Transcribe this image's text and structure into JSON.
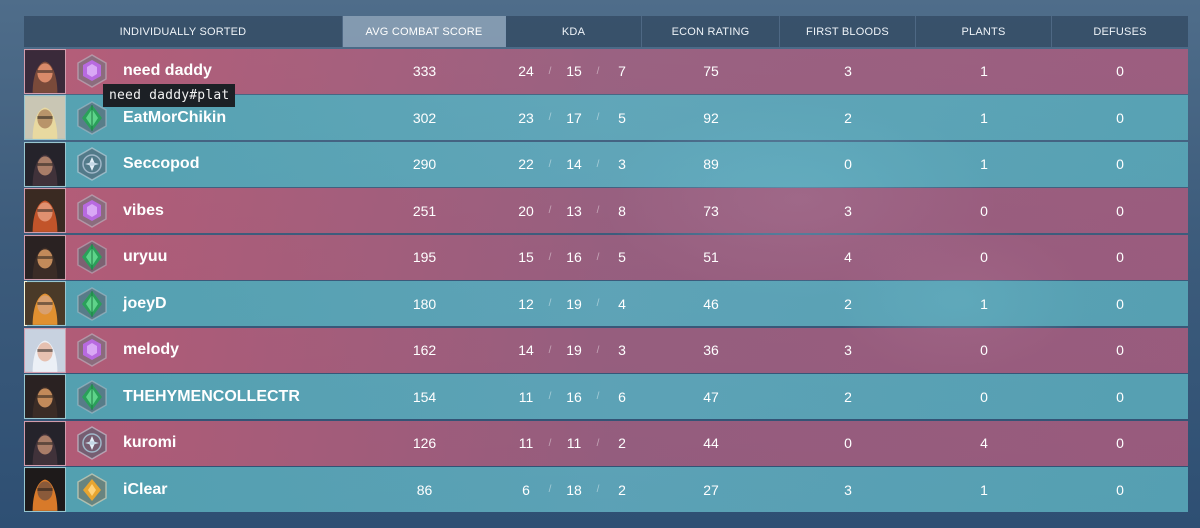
{
  "header": {
    "col_player": "INDIVIDUALLY SORTED",
    "col_acs": "AVG COMBAT SCORE",
    "col_kda": "KDA",
    "col_econ": "ECON RATING",
    "col_fb": "FIRST BLOODS",
    "col_plants": "PLANTS",
    "col_defuses": "DEFUSES",
    "sorted_column": "AVG COMBAT SCORE"
  },
  "tooltip": "need daddy#plat",
  "colors": {
    "red_team": "#c45c76",
    "teal_team": "#56a8b6",
    "platinum": "#b86ae0",
    "diamond": "#2aa05a",
    "silver": "#9fb7c8",
    "gold": "#e8a530"
  },
  "players": [
    {
      "name": "need daddy",
      "acs": "333",
      "k": "24",
      "d": "15",
      "a": "7",
      "econ": "75",
      "fb": "3",
      "plants": "1",
      "defuses": "0",
      "team": "red",
      "rank_icon": "platinum-rank-icon",
      "agent_icon": "agent-portrait-icon"
    },
    {
      "name": "EatMorChikin",
      "acs": "302",
      "k": "23",
      "d": "17",
      "a": "5",
      "econ": "92",
      "fb": "2",
      "plants": "1",
      "defuses": "0",
      "team": "teal",
      "rank_icon": "diamond-rank-icon",
      "agent_icon": "agent-portrait-icon"
    },
    {
      "name": "Seccopod",
      "acs": "290",
      "k": "22",
      "d": "14",
      "a": "3",
      "econ": "89",
      "fb": "0",
      "plants": "1",
      "defuses": "0",
      "team": "teal",
      "rank_icon": "silver-rank-icon",
      "agent_icon": "agent-portrait-icon"
    },
    {
      "name": "vibes",
      "acs": "251",
      "k": "20",
      "d": "13",
      "a": "8",
      "econ": "73",
      "fb": "3",
      "plants": "0",
      "defuses": "0",
      "team": "red",
      "rank_icon": "platinum-rank-icon",
      "agent_icon": "agent-portrait-icon"
    },
    {
      "name": "uryuu",
      "acs": "195",
      "k": "15",
      "d": "16",
      "a": "5",
      "econ": "51",
      "fb": "4",
      "plants": "0",
      "defuses": "0",
      "team": "red",
      "rank_icon": "diamond-rank-icon",
      "agent_icon": "agent-portrait-icon"
    },
    {
      "name": "joeyD",
      "acs": "180",
      "k": "12",
      "d": "19",
      "a": "4",
      "econ": "46",
      "fb": "2",
      "plants": "1",
      "defuses": "0",
      "team": "teal",
      "rank_icon": "diamond-rank-icon",
      "agent_icon": "agent-portrait-icon"
    },
    {
      "name": "melody",
      "acs": "162",
      "k": "14",
      "d": "19",
      "a": "3",
      "econ": "36",
      "fb": "3",
      "plants": "0",
      "defuses": "0",
      "team": "red",
      "rank_icon": "platinum-rank-icon",
      "agent_icon": "agent-portrait-icon"
    },
    {
      "name": "THEHYMENCOLLECTR",
      "acs": "154",
      "k": "11",
      "d": "16",
      "a": "6",
      "econ": "47",
      "fb": "2",
      "plants": "0",
      "defuses": "0",
      "team": "teal",
      "rank_icon": "diamond-rank-icon",
      "agent_icon": "agent-portrait-icon"
    },
    {
      "name": "kuromi",
      "acs": "126",
      "k": "11",
      "d": "11",
      "a": "2",
      "econ": "44",
      "fb": "0",
      "plants": "4",
      "defuses": "0",
      "team": "red",
      "rank_icon": "silver-rank-icon",
      "agent_icon": "agent-portrait-icon"
    },
    {
      "name": "iClear",
      "acs": "86",
      "k": "6",
      "d": "18",
      "a": "2",
      "econ": "27",
      "fb": "3",
      "plants": "1",
      "defuses": "0",
      "team": "teal",
      "rank_icon": "gold-rank-icon",
      "agent_icon": "agent-portrait-icon"
    }
  ]
}
